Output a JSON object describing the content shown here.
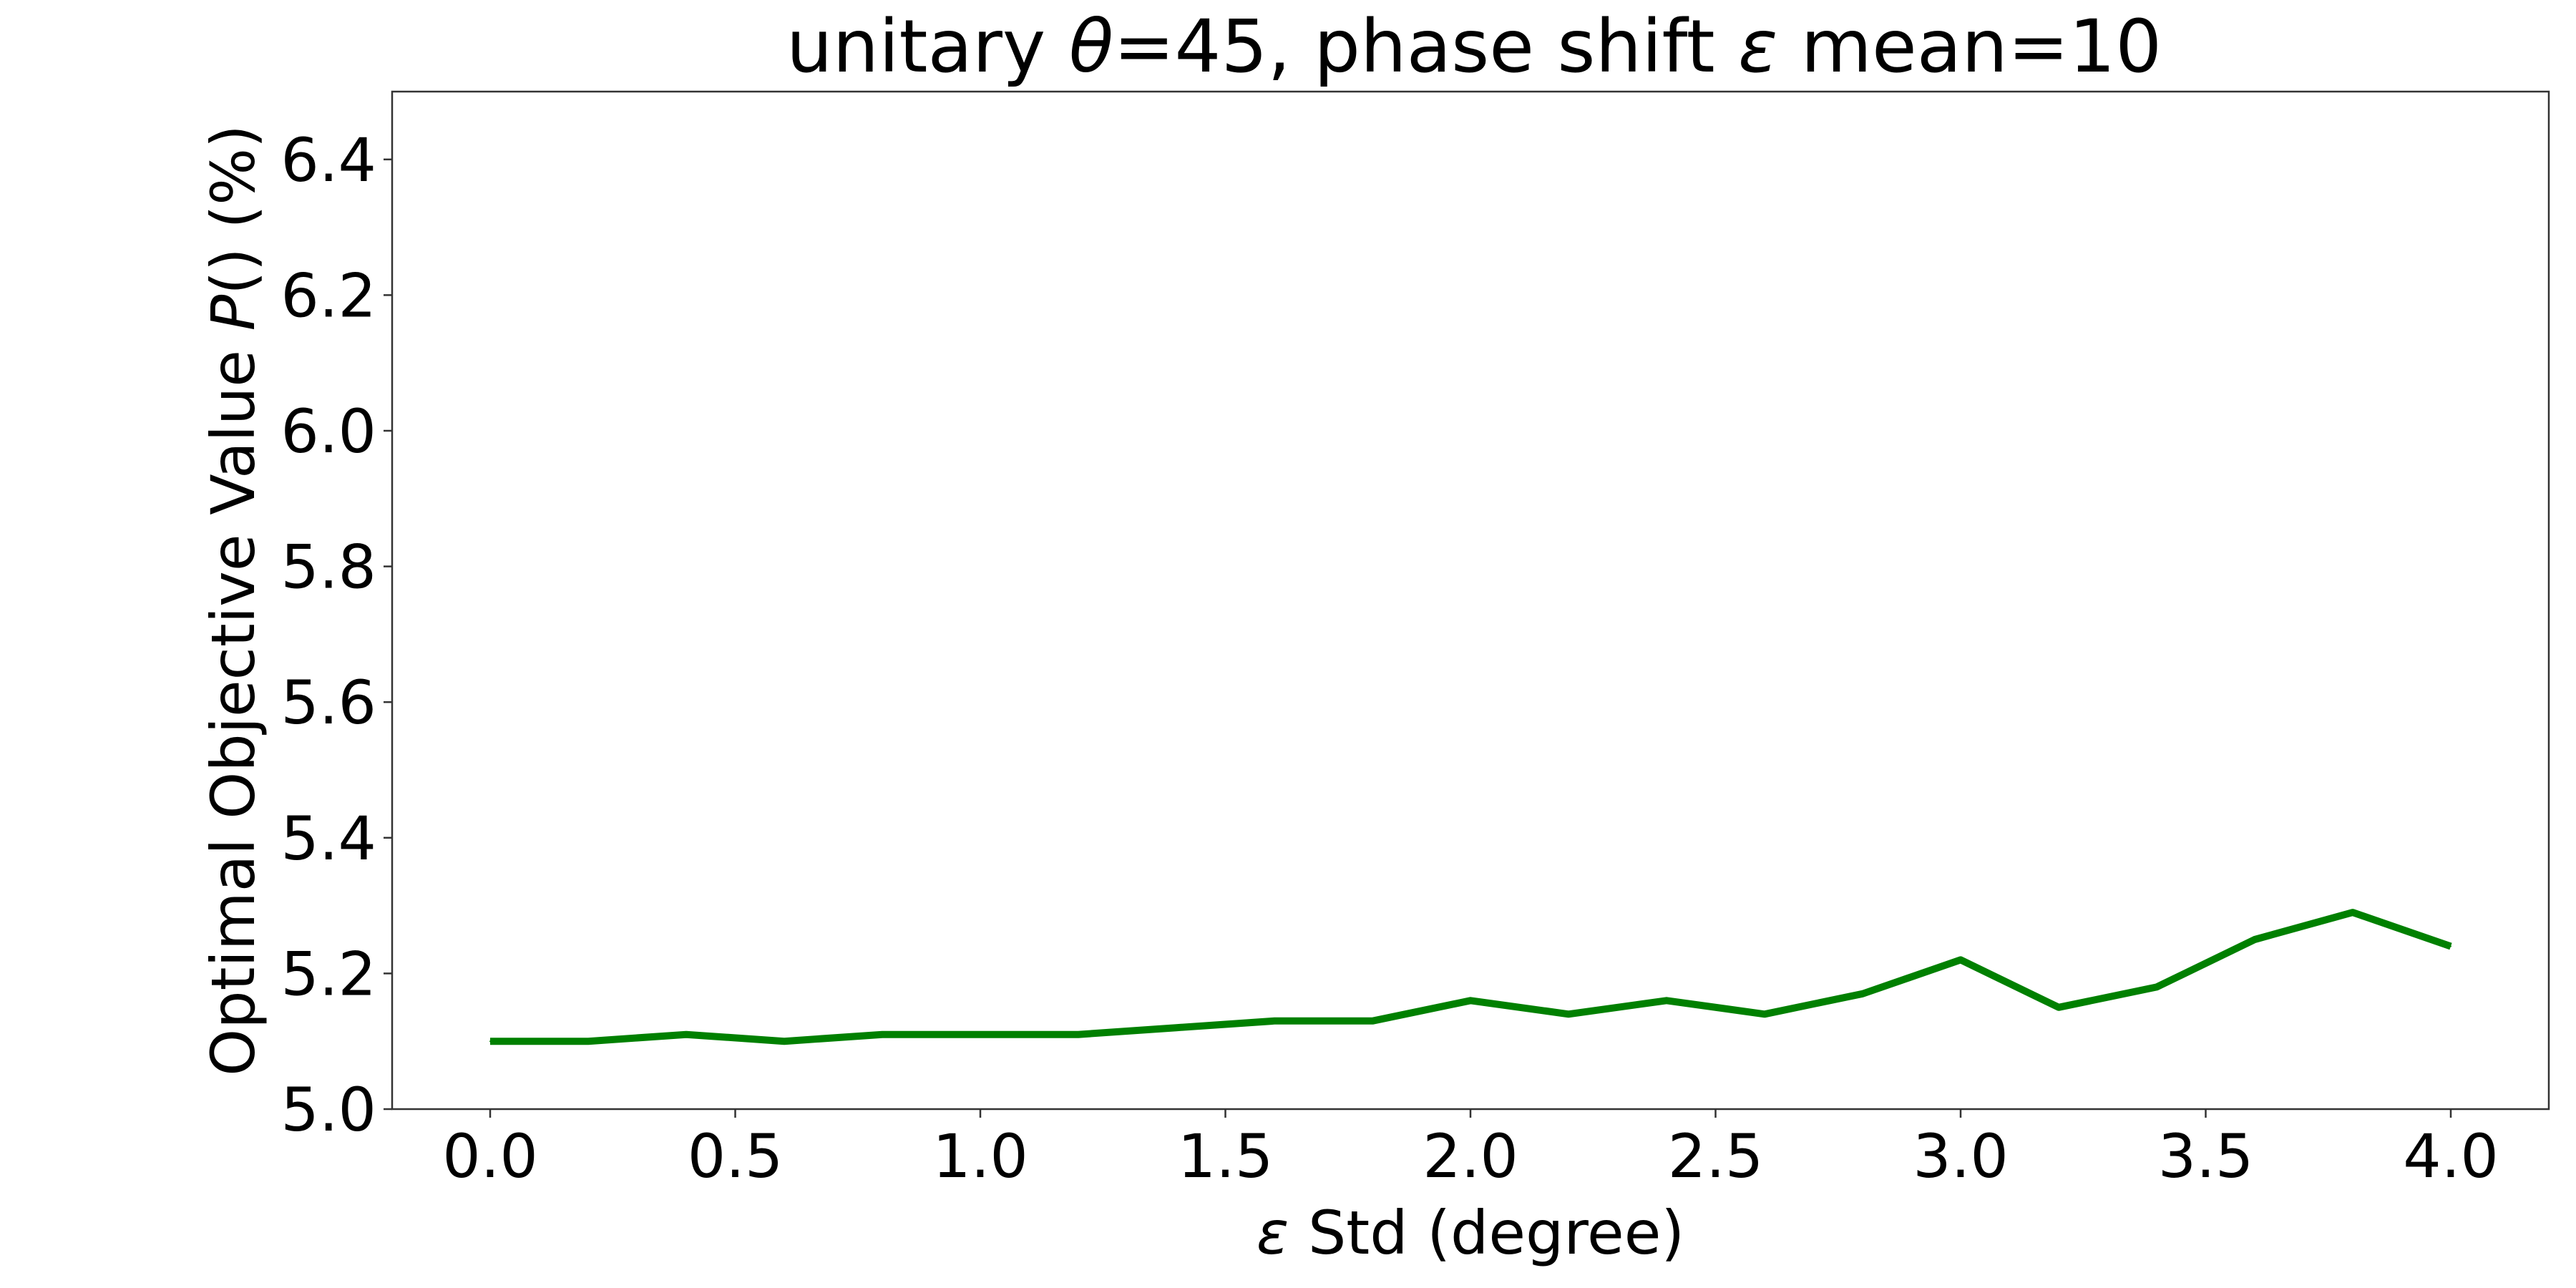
{
  "chart_data": {
    "type": "line",
    "title": {
      "prefix": "unitary ",
      "theta_symbol": "θ",
      "mid": "=45, phase shift ",
      "epsilon_symbol": "ε",
      "suffix": " mean=10"
    },
    "xlabel": {
      "symbol": "ε",
      "text": " Std (degree)"
    },
    "ylabel": {
      "prefix": "Optimal Objective Value ",
      "symbol": "P",
      "suffix": "()  (%)"
    },
    "x": [
      0.0,
      0.2,
      0.4,
      0.6,
      0.8,
      1.0,
      1.2,
      1.4,
      1.6,
      1.8,
      2.0,
      2.2,
      2.4,
      2.6,
      2.8,
      3.0,
      3.2,
      3.4,
      3.6,
      3.8,
      4.0
    ],
    "series": [
      {
        "color": "#008000",
        "values": [
          5.1,
          5.1,
          5.11,
          5.1,
          5.11,
          5.11,
          5.11,
          5.12,
          5.13,
          5.13,
          5.16,
          5.14,
          5.16,
          5.14,
          5.17,
          5.22,
          5.15,
          5.18,
          5.25,
          5.29,
          5.24
        ]
      }
    ],
    "xlim": [
      -0.2,
      4.2
    ],
    "ylim": [
      5.0,
      6.5
    ],
    "xticks": [
      "0.0",
      "0.5",
      "1.0",
      "1.5",
      "2.0",
      "2.5",
      "3.0",
      "3.5",
      "4.0"
    ],
    "yticks": [
      "5.0",
      "5.2",
      "5.4",
      "5.6",
      "5.8",
      "6.0",
      "6.2",
      "6.4"
    ],
    "grid": false,
    "legend": "none"
  }
}
